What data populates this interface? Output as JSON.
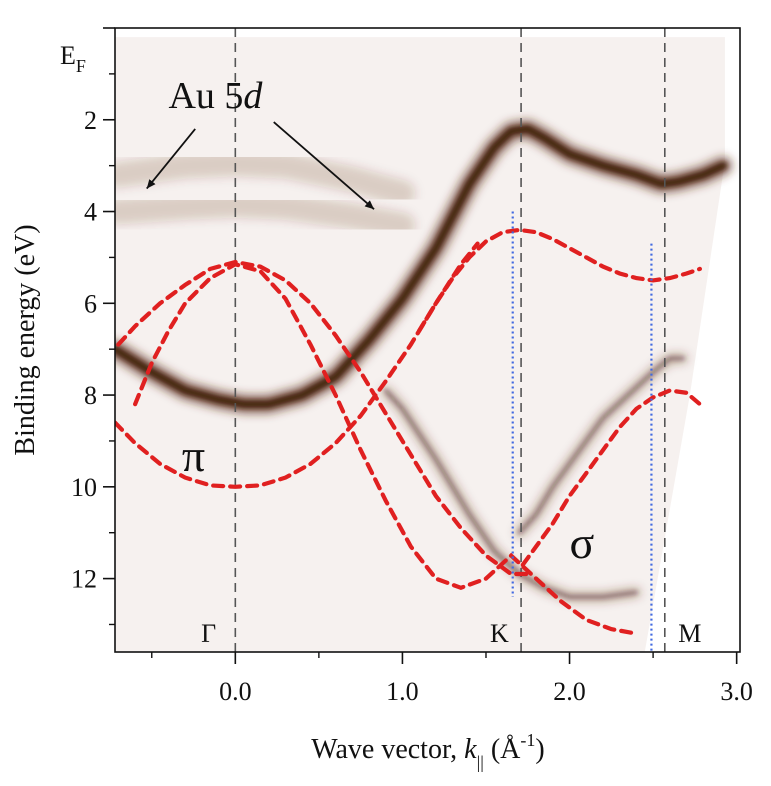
{
  "chart_data": {
    "type": "line",
    "title": "",
    "xlabel": "Wave vector, ",
    "xlabel_var": "k",
    "xlabel_sub": "||",
    "xlabel_unit_open": " (Å",
    "xlabel_unit_sup": "-1",
    "xlabel_unit_close": ")",
    "ylabel": "Binding energy (eV)",
    "xlim": [
      -0.72,
      3.02
    ],
    "ylim": [
      0,
      13.6
    ],
    "y_inverted": true,
    "x_ticks": [
      {
        "value": 0,
        "label": "0.0"
      },
      {
        "value": 1,
        "label": "1.0"
      },
      {
        "value": 2,
        "label": "2.0"
      },
      {
        "value": 3,
        "label": "3.0"
      }
    ],
    "x_minor_ticks": [
      -0.5,
      0.5,
      1.5,
      2.5
    ],
    "y_ticks": [
      {
        "value": 2,
        "label": "2"
      },
      {
        "value": 4,
        "label": "4"
      },
      {
        "value": 6,
        "label": "6"
      },
      {
        "value": 8,
        "label": "8"
      },
      {
        "value": 10,
        "label": "10"
      },
      {
        "value": 12,
        "label": "12"
      }
    ],
    "y_minor_ticks": [
      1,
      3,
      5,
      7,
      9,
      11,
      13
    ],
    "fermi_label": {
      "value": 0,
      "base": "E",
      "sub": "F"
    },
    "high_symmetry_points": [
      {
        "label": "Γ",
        "x": 0.0,
        "label_x": -0.16
      },
      {
        "label": "K",
        "x": 1.71,
        "label_x": 1.58
      },
      {
        "label": "M",
        "x": 2.57,
        "label_x": 2.72
      }
    ],
    "measured_bands_grayscale": {
      "color": "#5a2c18",
      "bands": [
        {
          "name": "main-pi-band",
          "x": [
            -0.72,
            -0.5,
            -0.3,
            -0.1,
            0.05,
            0.2,
            0.4,
            0.6,
            0.8,
            1.0,
            1.2,
            1.4,
            1.55,
            1.65,
            1.75,
            1.85,
            2.0,
            2.2,
            2.4,
            2.55,
            2.65,
            2.8,
            2.92
          ],
          "y": [
            7.0,
            7.5,
            7.9,
            8.1,
            8.2,
            8.2,
            8.0,
            7.6,
            6.8,
            5.9,
            4.8,
            3.4,
            2.6,
            2.25,
            2.2,
            2.4,
            2.75,
            3.0,
            3.2,
            3.4,
            3.35,
            3.2,
            3.0
          ]
        },
        {
          "name": "lower-band-a",
          "x": [
            0.9,
            1.0,
            1.2,
            1.4,
            1.55,
            1.7,
            1.85,
            2.0,
            2.2,
            2.4
          ],
          "y": [
            7.9,
            8.3,
            9.4,
            10.6,
            11.4,
            11.9,
            12.2,
            12.4,
            12.4,
            12.3
          ]
        },
        {
          "name": "lower-band-b",
          "x": [
            1.7,
            1.8,
            1.9,
            2.0,
            2.1,
            2.2,
            2.35,
            2.5,
            2.6,
            2.68
          ],
          "y": [
            11.0,
            10.6,
            10.0,
            9.5,
            9.0,
            8.5,
            8.0,
            7.5,
            7.2,
            7.2
          ]
        },
        {
          "name": "au-5d-flat",
          "x": [
            -0.7,
            -0.3,
            0.0,
            0.3,
            0.7,
            1.0
          ],
          "y": [
            3.2,
            3.0,
            2.95,
            3.0,
            3.3,
            3.6
          ]
        },
        {
          "name": "au-5d-flat-2",
          "x": [
            -0.7,
            -0.3,
            0.0,
            0.3,
            0.7,
            1.0
          ],
          "y": [
            4.0,
            3.9,
            3.85,
            3.9,
            4.1,
            4.3
          ]
        }
      ]
    },
    "series": [
      {
        "name": "calc-pi-upper",
        "color": "#e02020",
        "style": "dashed",
        "x": [
          -0.72,
          -0.6,
          -0.45,
          -0.3,
          -0.15,
          0.0,
          0.15,
          0.3,
          0.45,
          0.6,
          0.75,
          0.9,
          1.05,
          1.2,
          1.35,
          1.45
        ],
        "y": [
          8.6,
          9.05,
          9.5,
          9.8,
          9.97,
          10.0,
          9.97,
          9.8,
          9.5,
          9.05,
          8.45,
          7.7,
          6.9,
          6.0,
          5.15,
          4.7
        ]
      },
      {
        "name": "calc-pi-k",
        "color": "#e02020",
        "style": "dashed",
        "x": [
          1.1,
          1.2,
          1.3,
          1.4,
          1.5,
          1.6,
          1.7,
          1.8,
          1.9,
          2.0,
          2.1,
          2.2,
          2.3,
          2.4,
          2.5,
          2.6,
          2.7,
          2.78
        ],
        "y": [
          6.6,
          6.0,
          5.45,
          5.0,
          4.65,
          4.45,
          4.4,
          4.45,
          4.6,
          4.8,
          5.0,
          5.2,
          5.35,
          5.45,
          5.5,
          5.45,
          5.35,
          5.25
        ]
      },
      {
        "name": "calc-sigma-a",
        "color": "#e02020",
        "style": "dashed",
        "x": [
          -0.7,
          -0.6,
          -0.45,
          -0.3,
          -0.15,
          0.0,
          0.15,
          0.3,
          0.45,
          0.6,
          0.75,
          0.9,
          1.05,
          1.2,
          1.35,
          1.5,
          1.65,
          1.75
        ],
        "y": [
          6.9,
          6.5,
          6.0,
          5.6,
          5.25,
          5.1,
          5.2,
          5.5,
          6.0,
          6.7,
          7.5,
          8.4,
          9.3,
          10.2,
          10.9,
          11.5,
          11.9,
          11.9
        ]
      },
      {
        "name": "calc-sigma-b",
        "color": "#e02020",
        "style": "dashed",
        "x": [
          -0.6,
          -0.5,
          -0.4,
          -0.3,
          -0.15,
          0.0,
          0.15,
          0.3,
          0.45,
          0.6,
          0.75,
          0.9,
          1.05,
          1.2,
          1.35,
          1.5,
          1.65,
          1.8,
          1.95,
          2.1,
          2.25,
          2.4
        ],
        "y": [
          8.2,
          7.3,
          6.6,
          6.0,
          5.45,
          5.15,
          5.3,
          5.9,
          6.9,
          8.0,
          9.2,
          10.3,
          11.3,
          12.0,
          12.2,
          12.0,
          11.5,
          12.0,
          12.5,
          12.9,
          13.1,
          13.2
        ]
      },
      {
        "name": "calc-sigma-m",
        "color": "#e02020",
        "style": "dashed",
        "x": [
          1.72,
          1.8,
          1.9,
          2.0,
          2.1,
          2.2,
          2.3,
          2.4,
          2.5,
          2.6,
          2.7,
          2.78
        ],
        "y": [
          11.7,
          11.3,
          10.8,
          10.2,
          9.7,
          9.2,
          8.7,
          8.3,
          8.05,
          7.9,
          7.95,
          8.2
        ]
      }
    ],
    "dotted_lines_blue": [
      {
        "x": 1.66,
        "y_from": 4.0,
        "y_to": 12.4,
        "color": "#4169e1"
      },
      {
        "x": 2.49,
        "y_from": 4.7,
        "y_to": 13.6,
        "color": "#4169e1"
      }
    ],
    "annotations": [
      {
        "name": "au5d-label",
        "text_base": "Au 5",
        "text_italic": "d",
        "x": -0.4,
        "y": 1.45
      },
      {
        "name": "pi-label",
        "text": "π",
        "x": -0.32,
        "y": 9.3
      },
      {
        "name": "sigma-label",
        "text": "σ",
        "x": 2.0,
        "y": 11.2
      }
    ],
    "arrows": [
      {
        "name": "arrow-left",
        "from": [
          -0.24,
          2.2
        ],
        "to": [
          -0.53,
          3.5
        ]
      },
      {
        "name": "arrow-right",
        "from": [
          0.23,
          2.05
        ],
        "to": [
          0.83,
          3.95
        ]
      }
    ]
  }
}
